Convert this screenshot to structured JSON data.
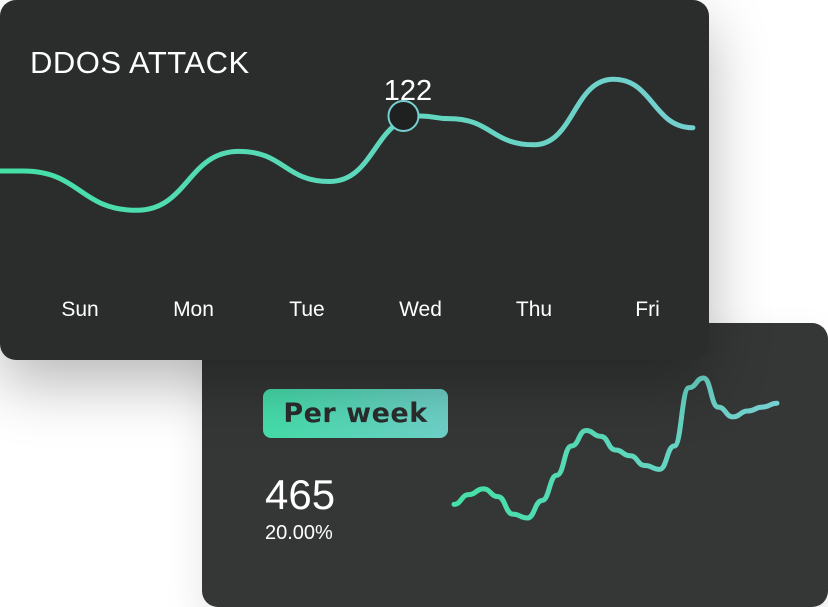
{
  "colors": {
    "line_start": "#44e0a6",
    "line_end": "#76cfd0",
    "card_front": "#2b2c2c",
    "card_back": "#353636",
    "marker_fill": "#1f2121"
  },
  "chart_data": [
    {
      "type": "line",
      "title": "DDOS ATTACK",
      "categories": [
        "Sun",
        "Mon",
        "Tue",
        "Wed",
        "Thu",
        "Fri"
      ],
      "series": [
        {
          "x": [
            -0.7,
            -0.5,
            0.5,
            1.4,
            2.2,
            3.0,
            3.25,
            4.0,
            4.7,
            5.4
          ],
          "values": [
            80,
            80,
            50,
            95,
            72,
            122,
            120,
            100,
            150,
            113
          ]
        }
      ],
      "annotation": {
        "x": 2.85,
        "value": "122"
      },
      "grid": false,
      "legend": "none"
    },
    {
      "type": "line",
      "label": "Per week",
      "value": "465",
      "change": "20.00%",
      "series": [
        {
          "values": [
            10,
            15,
            18,
            14,
            5,
            3,
            12,
            25,
            40,
            48,
            45,
            38,
            35,
            30,
            28,
            40,
            70,
            75,
            60,
            55,
            58,
            60,
            62
          ]
        }
      ]
    }
  ]
}
